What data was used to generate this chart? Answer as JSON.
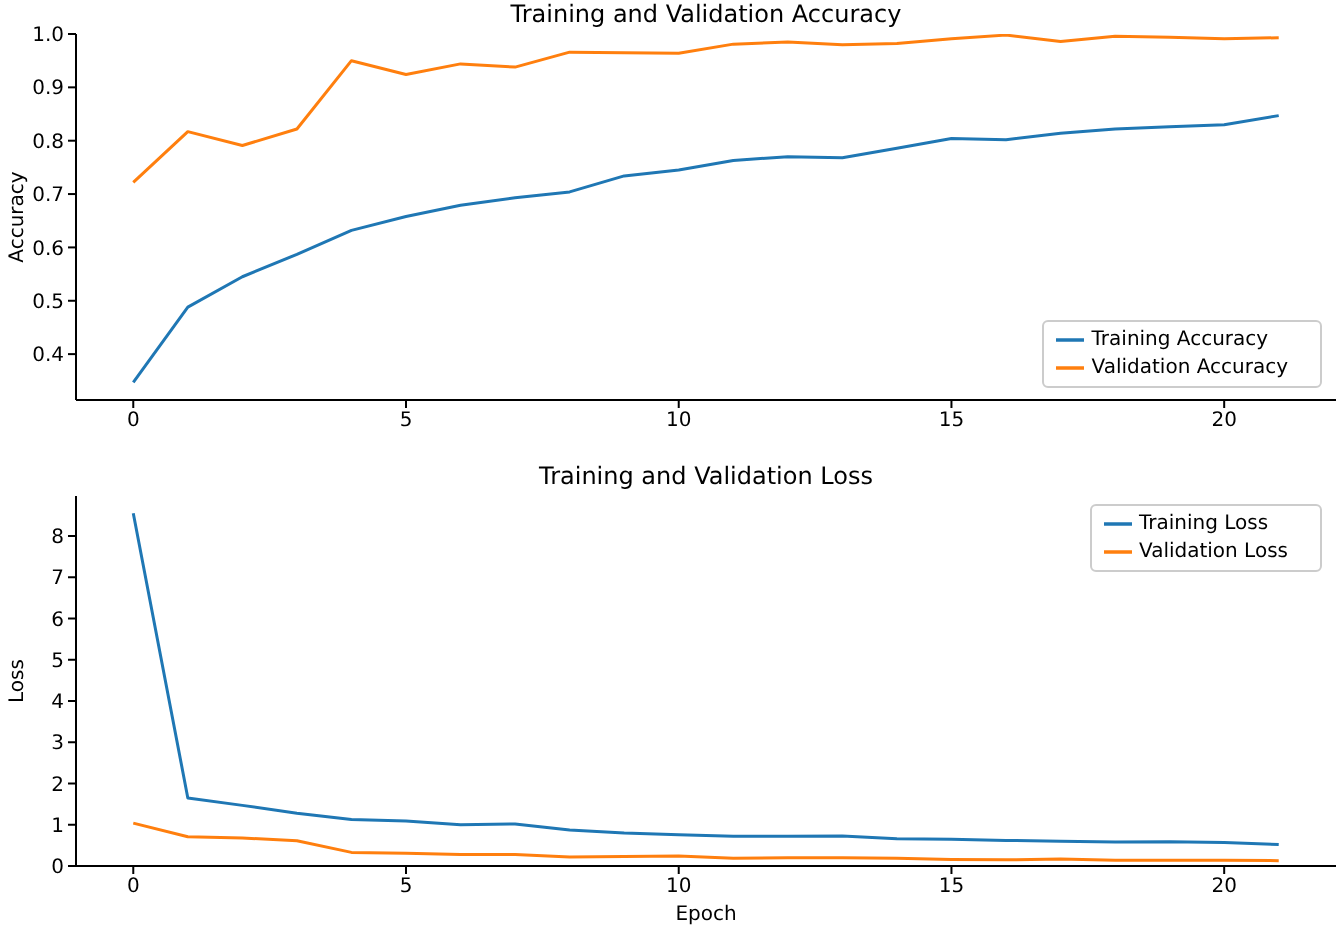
{
  "chart_data": [
    {
      "type": "line",
      "title": "Training and Validation Accuracy",
      "ylabel": "Accuracy",
      "x": [
        0,
        1,
        2,
        3,
        4,
        5,
        6,
        7,
        8,
        9,
        10,
        11,
        12,
        13,
        14,
        15,
        16,
        17,
        18,
        19,
        20,
        21
      ],
      "series": [
        {
          "name": "Training Accuracy",
          "color": "#1f77b4",
          "values": [
            0.347,
            0.488,
            0.545,
            0.587,
            0.632,
            0.658,
            0.679,
            0.693,
            0.704,
            0.734,
            0.745,
            0.763,
            0.77,
            0.768,
            0.786,
            0.804,
            0.802,
            0.814,
            0.822,
            0.826,
            0.83,
            0.847
          ]
        },
        {
          "name": "Validation Accuracy",
          "color": "#ff7f0e",
          "values": [
            0.722,
            0.817,
            0.791,
            0.822,
            0.95,
            0.924,
            0.944,
            0.938,
            0.966,
            0.965,
            0.964,
            0.981,
            0.985,
            0.98,
            0.982,
            0.991,
            0.998,
            0.986,
            0.996,
            0.994,
            0.991,
            0.993
          ]
        }
      ],
      "xlim": [
        -1.05,
        22.05
      ],
      "xticks": [
        0,
        5,
        10,
        15,
        20
      ],
      "ylim": [
        0.314,
        1
      ],
      "yticks": [
        0.4,
        0.5,
        0.6,
        0.7,
        0.8,
        0.9,
        {
          "value": 1,
          "label": "1.0"
        }
      ],
      "legend": "bottom right",
      "grid": false,
      "marker": "none",
      "line_style": "solid"
    },
    {
      "type": "line",
      "title": "Training and Validation Loss",
      "xlabel": "Epoch",
      "ylabel": "Loss",
      "x": [
        0,
        1,
        2,
        3,
        4,
        5,
        6,
        7,
        8,
        9,
        10,
        11,
        12,
        13,
        14,
        15,
        16,
        17,
        18,
        19,
        20,
        21
      ],
      "series": [
        {
          "name": "Training Loss",
          "color": "#1f77b4",
          "values": [
            8.55,
            1.65,
            1.47,
            1.28,
            1.13,
            1.09,
            1.0,
            1.02,
            0.87,
            0.8,
            0.76,
            0.72,
            0.72,
            0.73,
            0.66,
            0.65,
            0.62,
            0.6,
            0.58,
            0.59,
            0.57,
            0.52
          ]
        },
        {
          "name": "Validation Loss",
          "color": "#ff7f0e",
          "values": [
            1.04,
            0.71,
            0.68,
            0.61,
            0.33,
            0.31,
            0.28,
            0.28,
            0.22,
            0.23,
            0.24,
            0.19,
            0.2,
            0.2,
            0.19,
            0.16,
            0.15,
            0.17,
            0.14,
            0.14,
            0.14,
            0.13
          ]
        }
      ],
      "xlim": [
        -1.05,
        22.05
      ],
      "xticks": [
        0,
        5,
        10,
        15,
        20
      ],
      "ylim": [
        0,
        8.97
      ],
      "yticks": [
        0,
        1,
        2,
        3,
        4,
        5,
        6,
        7,
        8
      ],
      "legend": "top right",
      "grid": false,
      "marker": "none",
      "line_style": "solid"
    }
  ]
}
